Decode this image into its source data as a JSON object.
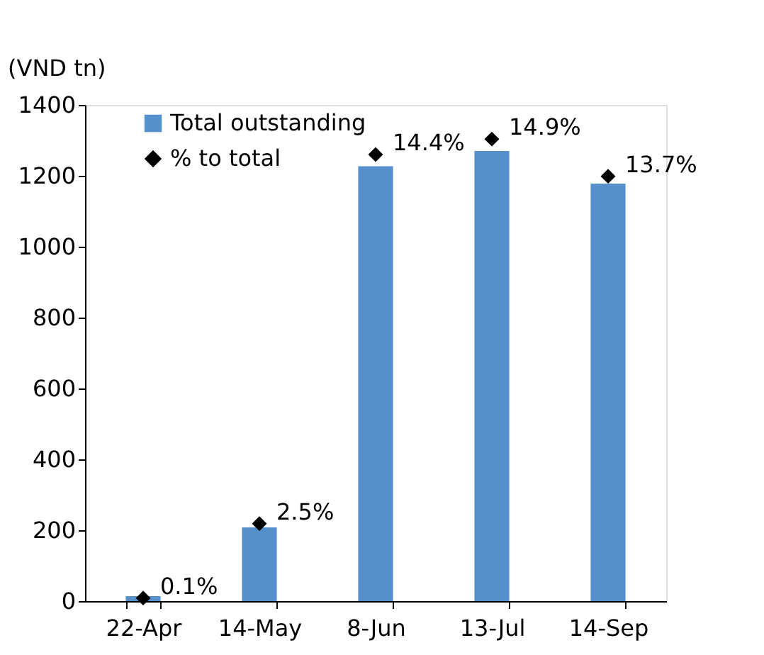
{
  "chart_data": {
    "type": "bar",
    "ylabel": "(VND tn)",
    "categories": [
      "22-Apr",
      "14-May",
      "8-Jun",
      "13-Jul",
      "14-Sep"
    ],
    "series": [
      {
        "name": "Total outstanding",
        "color": "#5590cc",
        "values": [
          14,
          208,
          1227,
          1270,
          1178
        ]
      },
      {
        "name": "% to total",
        "type": "scatter",
        "axis": "y2",
        "color": "#000000",
        "marker": "diamond",
        "values": [
          0.1,
          2.5,
          14.4,
          14.9,
          13.7
        ],
        "value_labels": [
          "0.1%",
          "2.5%",
          "14.4%",
          "14.9%",
          "13.7%"
        ]
      }
    ],
    "ylim": [
      0,
      1400
    ],
    "yticks": [
      0,
      200,
      400,
      600,
      800,
      1000,
      1200,
      1400
    ],
    "y2lim": [
      0,
      16
    ],
    "grid": false,
    "legend": "top left"
  }
}
